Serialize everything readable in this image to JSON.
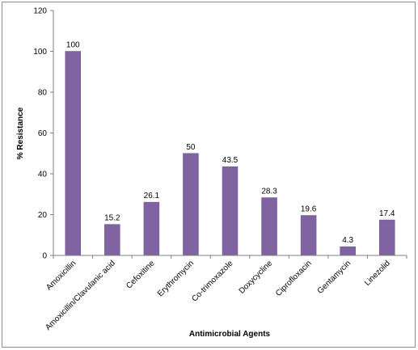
{
  "chart_data": {
    "type": "bar",
    "categories": [
      "Amoxicillin",
      "Amoxicillin/Clavulanic acid",
      "Cefoxitine",
      "Erythromycin",
      "Co-trimoxazole",
      "Doxycycline",
      "Ciprofloxacin",
      "Gentamycin",
      "Linezolid"
    ],
    "values": [
      100,
      15.2,
      26.1,
      50,
      43.5,
      28.3,
      19.6,
      4.3,
      17.4
    ],
    "data_labels": [
      "100",
      "15.2",
      "26.1",
      "50",
      "43.5",
      "28.3",
      "19.6",
      "4.3",
      "17.4"
    ],
    "title": "",
    "xlabel": "Antimicrobial Agents",
    "ylabel": "% Resistance",
    "ylim": [
      0,
      120
    ],
    "yticks": [
      "0",
      "20",
      "40",
      "60",
      "80",
      "100",
      "120"
    ],
    "grid": false,
    "legend": "none",
    "bar_color": "#8064A2",
    "bar_stroke": "#6B5290"
  }
}
